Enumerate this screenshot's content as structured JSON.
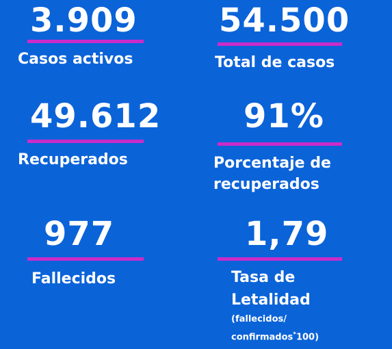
{
  "stats": {
    "active_cases": {
      "value": "3.909",
      "label": "Casos activos"
    },
    "total_cases": {
      "value": "54.500",
      "label": "Total de casos"
    },
    "recovered": {
      "value": "49.612",
      "label": "Recuperados"
    },
    "recovered_pct": {
      "value": "91%",
      "label_line1": "Porcentaje de",
      "label_line2": "recuperados"
    },
    "deceased": {
      "value": "977",
      "label": "Fallecidos"
    },
    "fatality_rate": {
      "value": "1,79",
      "label_line1": "Tasa de",
      "label_line2": "Letalidad",
      "note_line1": "(fallecidos/",
      "note_line2": "confirmados",
      "note_sup": "*",
      "note_end": "100)"
    }
  },
  "colors": {
    "background": "#0b63d8",
    "accent_bar": "#cc2bc9",
    "text": "#ffffff"
  }
}
